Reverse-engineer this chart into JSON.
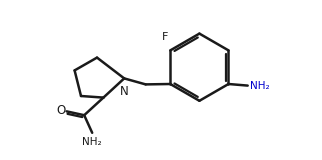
{
  "bg_color": "#ffffff",
  "line_color": "#1a1a1a",
  "text_color": "#1a1a1a",
  "nh2_color": "#0000cd",
  "line_width": 1.8,
  "figsize": [
    3.22,
    1.6
  ],
  "dpi": 100,
  "xlim": [
    0,
    10
  ],
  "ylim": [
    0,
    5
  ]
}
